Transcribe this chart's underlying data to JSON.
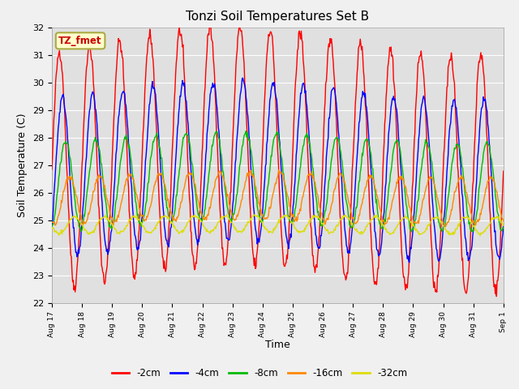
{
  "title": "Tonzi Soil Temperatures Set B",
  "xlabel": "Time",
  "ylabel": "Soil Temperature (C)",
  "ylim": [
    22.0,
    32.0
  ],
  "yticks": [
    22.0,
    23.0,
    24.0,
    25.0,
    26.0,
    27.0,
    28.0,
    29.0,
    30.0,
    31.0,
    32.0
  ],
  "series_labels": [
    "-2cm",
    "-4cm",
    "-8cm",
    "-16cm",
    "-32cm"
  ],
  "series_colors": [
    "#ff0000",
    "#0000ff",
    "#00bb00",
    "#ff8800",
    "#dddd00"
  ],
  "legend_label": "TZ_fmet",
  "legend_bg": "#ffffcc",
  "legend_edge": "#aaaa44",
  "fig_bg": "#f0f0f0",
  "ax_bg": "#e0e0e0",
  "n_days": 15,
  "start_day": 17,
  "params": {
    "2cm": {
      "mean": 27.2,
      "amp": 4.3,
      "phase": 0.0,
      "noise": 0.12
    },
    "4cm": {
      "mean": 26.8,
      "amp": 2.9,
      "phase": 2.5,
      "noise": 0.08
    },
    "8cm": {
      "mean": 26.4,
      "amp": 1.6,
      "phase": 5.0,
      "noise": 0.06
    },
    "16cm": {
      "mean": 25.8,
      "amp": 0.85,
      "phase": 8.0,
      "noise": 0.05
    },
    "32cm": {
      "mean": 24.85,
      "amp": 0.3,
      "phase": 12.0,
      "noise": 0.03
    }
  }
}
